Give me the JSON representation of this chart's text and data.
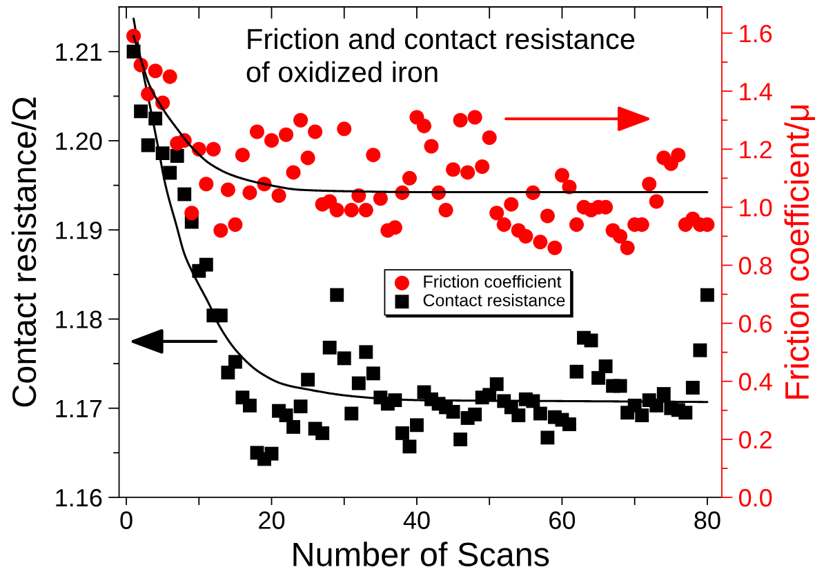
{
  "chart_data": {
    "type": "scatter",
    "title": "Friction and contact resistance\nof oxidized iron",
    "xlabel": "Number of Scans",
    "ylabel": "Contact resistance/Ω",
    "y2label": "Friction coefficient/μ",
    "x": [
      1,
      2,
      3,
      4,
      5,
      6,
      7,
      8,
      9,
      10,
      11,
      12,
      13,
      14,
      15,
      16,
      17,
      18,
      19,
      20,
      21,
      22,
      23,
      24,
      25,
      26,
      27,
      28,
      29,
      30,
      31,
      32,
      33,
      34,
      35,
      36,
      37,
      38,
      39,
      40,
      41,
      42,
      43,
      44,
      45,
      46,
      47,
      48,
      49,
      50,
      51,
      52,
      53,
      54,
      55,
      56,
      57,
      58,
      59,
      60,
      61,
      62,
      63,
      64,
      65,
      66,
      67,
      68,
      69,
      70,
      71,
      72,
      73,
      74,
      75,
      76,
      77,
      78,
      79,
      80
    ],
    "xlim": [
      -1,
      82
    ],
    "xticks": [
      0,
      20,
      40,
      60,
      80
    ],
    "ylim": [
      1.16,
      1.215
    ],
    "yticks": [
      1.16,
      1.17,
      1.18,
      1.19,
      {
        "value": 1.2,
        "label": "1.20"
      },
      1.21
    ],
    "y2lim": [
      0,
      1.69
    ],
    "y2ticks": [
      {
        "value": 0,
        "label": "0.0"
      },
      0.2,
      0.4,
      0.6,
      0.8,
      {
        "value": 1,
        "label": "1.0"
      },
      1.2,
      1.4,
      1.6
    ],
    "legend": "center",
    "series": [
      {
        "name": "Friction coefficient",
        "axis": "y2",
        "marker": "circle",
        "color": "#ff0000",
        "values": [
          1.59,
          1.49,
          1.39,
          1.47,
          1.36,
          1.45,
          1.22,
          1.23,
          0.98,
          1.2,
          1.08,
          1.2,
          0.92,
          1.06,
          0.94,
          1.18,
          1.05,
          1.26,
          1.08,
          1.23,
          1.04,
          1.25,
          1.12,
          1.3,
          1.17,
          1.26,
          1.01,
          1.02,
          0.99,
          1.27,
          0.99,
          1.04,
          0.99,
          1.18,
          1.03,
          0.92,
          0.93,
          1.05,
          1.1,
          1.31,
          1.28,
          1.21,
          1.05,
          0.99,
          1.13,
          1.3,
          1.12,
          1.31,
          1.14,
          1.24,
          0.98,
          0.94,
          1.01,
          0.92,
          0.9,
          1.05,
          0.88,
          0.97,
          0.86,
          1.11,
          1.07,
          0.94,
          1.0,
          0.99,
          1.0,
          1.0,
          0.92,
          0.9,
          0.86,
          0.94,
          0.94,
          1.08,
          1.02,
          1.17,
          1.15,
          1.18,
          0.94,
          0.96,
          0.94,
          0.94
        ]
      },
      {
        "name": "Contact resistance",
        "axis": "y",
        "marker": "square",
        "color": "#000000",
        "values": [
          1.21,
          1.2033,
          1.1995,
          1.2025,
          1.1986,
          1.1964,
          1.1983,
          1.194,
          1.1909,
          1.1854,
          1.1861,
          1.1804,
          1.1804,
          1.174,
          1.1752,
          1.1712,
          1.1703,
          1.165,
          1.1643,
          1.1649,
          1.1697,
          1.1692,
          1.1679,
          1.1702,
          1.1732,
          1.1677,
          1.1672,
          1.1768,
          1.1827,
          1.1756,
          1.1694,
          1.1728,
          1.1763,
          1.1739,
          1.1712,
          1.1705,
          1.1709,
          1.1672,
          1.1657,
          1.1681,
          1.1718,
          1.171,
          1.1705,
          1.1701,
          1.1696,
          1.1665,
          1.1689,
          1.1693,
          1.1712,
          1.1715,
          1.1727,
          1.1708,
          1.1701,
          1.1692,
          1.171,
          1.1708,
          1.1694,
          1.1667,
          1.169,
          1.1687,
          1.1682,
          1.1741,
          1.1779,
          1.1776,
          1.1734,
          1.1747,
          1.1725,
          1.1725,
          1.1695,
          1.1703,
          1.1692,
          1.1709,
          1.1703,
          1.1716,
          1.17,
          1.1698,
          1.1695,
          1.1723,
          1.1765,
          1.1827
        ]
      },
      {
        "type": "line",
        "axis": "y2",
        "color": "#000000",
        "x": [
          1,
          2,
          3.2,
          5,
          7,
          8.9,
          11.5,
          14.6,
          19,
          24,
          30.5,
          40.6,
          60,
          80
        ],
        "values": [
          1.59,
          1.51,
          1.42,
          1.34,
          1.27,
          1.21,
          1.15,
          1.11,
          1.08,
          1.06,
          1.055,
          1.052,
          1.052,
          1.052
        ]
      },
      {
        "type": "line",
        "axis": "y",
        "color": "#000000",
        "x": [
          1,
          2,
          3.5,
          4.3,
          5.4,
          6.9,
          8,
          9.2,
          11.5,
          12.7,
          15.3,
          18.4,
          21.6,
          25,
          30.5,
          36.8,
          40.6,
          60,
          80
        ],
        "values": [
          1.2137,
          1.209,
          1.2029,
          1.1996,
          1.195,
          1.1905,
          1.1873,
          1.1851,
          1.1815,
          1.1794,
          1.1763,
          1.174,
          1.1727,
          1.1721,
          1.1714,
          1.171,
          1.1709,
          1.1708,
          1.1707
        ]
      }
    ]
  }
}
